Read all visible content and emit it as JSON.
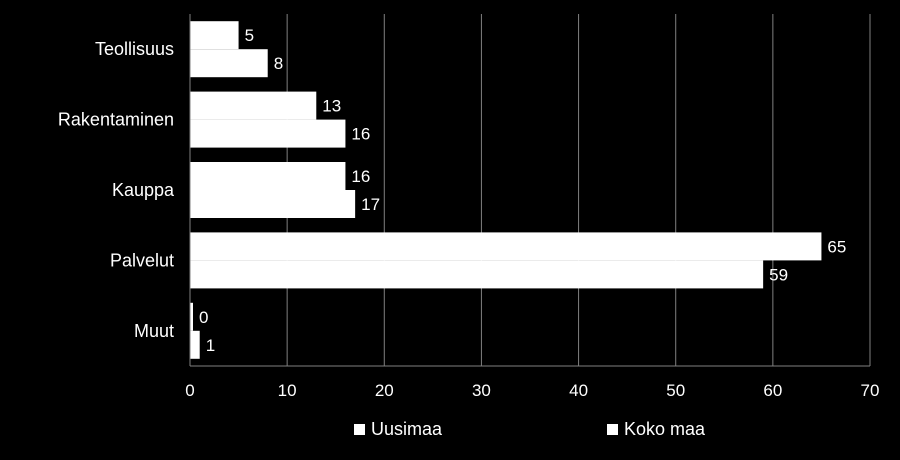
{
  "chart_data": {
    "type": "bar",
    "orientation": "horizontal",
    "categories": [
      "Teollisuus",
      "Rakentaminen",
      "Kauppa",
      "Palvelut",
      "Muut"
    ],
    "series": [
      {
        "name": "Uusimaa",
        "values": [
          5,
          13,
          16,
          65,
          0
        ],
        "labels": [
          "5",
          "13",
          "16",
          "65",
          "0"
        ]
      },
      {
        "name": "Koko maa",
        "values": [
          8,
          16,
          17,
          59,
          1
        ],
        "labels": [
          "8",
          "16",
          "17",
          "59",
          "1"
        ]
      }
    ],
    "xlim": [
      0,
      70
    ],
    "x_ticks": [
      0,
      10,
      20,
      30,
      40,
      50,
      60,
      70
    ],
    "x_tick_labels": [
      "0",
      "10",
      "20",
      "30",
      "40",
      "50",
      "60",
      "70"
    ],
    "grid": true,
    "legend_position": "bottom",
    "colors": {
      "background": "#000000",
      "bars": "#ffffff",
      "text": "#ffffff",
      "grid": "#808080"
    }
  }
}
